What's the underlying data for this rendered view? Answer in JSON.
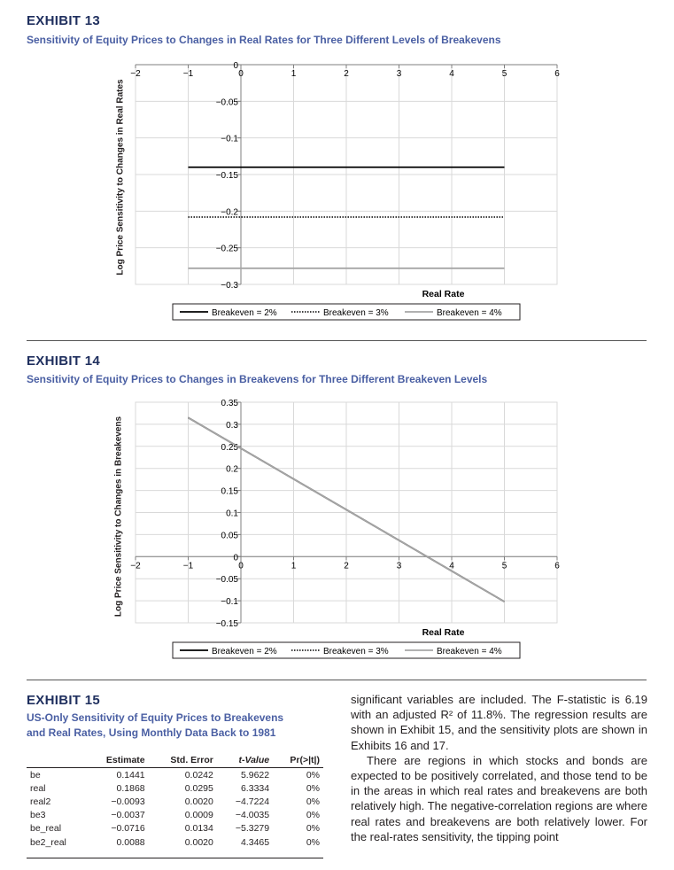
{
  "exhibit13": {
    "label": "EXHIBIT 13",
    "subtitle": "Sensitivity of Equity Prices to Changes in Real Rates for Three Different Levels of Breakevens",
    "ylabel": "Log Price Sensitivity to Changes in Real Rates",
    "xlabel": "Real Rate",
    "legend": [
      "Breakeven = 2%",
      "Breakeven = 3%",
      "Breakeven = 4%"
    ]
  },
  "exhibit14": {
    "label": "EXHIBIT 14",
    "subtitle": "Sensitivity of Equity Prices to Changes in Breakevens for Three Different Breakeven Levels",
    "ylabel": "Log Price Sensitivity to Changes in Breakevens",
    "xlabel": "Real Rate",
    "legend": [
      "Breakeven = 2%",
      "Breakeven = 3%",
      "Breakeven = 4%"
    ]
  },
  "exhibit15": {
    "label": "EXHIBIT 15",
    "subtitle_line1": "US-Only Sensitivity of Equity Prices to Breakevens",
    "subtitle_line2": "and Real Rates, Using Monthly Data Back to 1981",
    "columns": [
      "",
      "Estimate",
      "Std. Error",
      "t-Value",
      "Pr(>|t|)"
    ],
    "rows": [
      [
        "be",
        "0.1441",
        "0.0242",
        "5.9622",
        "0%"
      ],
      [
        "real",
        "0.1868",
        "0.0295",
        "6.3334",
        "0%"
      ],
      [
        "real2",
        "−0.0093",
        "0.0020",
        "−4.7224",
        "0%"
      ],
      [
        "be3",
        "−0.0037",
        "0.0009",
        "−4.0035",
        "0%"
      ],
      [
        "be_real",
        "−0.0716",
        "0.0134",
        "−5.3279",
        "0%"
      ],
      [
        "be2_real",
        "0.0088",
        "0.0020",
        "4.3465",
        "0%"
      ]
    ]
  },
  "body_text": {
    "p1": "significant variables are included. The F-statistic is 6.19 with an adjusted R² of 11.8%. The regression results are shown in Exhibit 15, and the sensitivity plots are shown in Exhibits 16 and 17.",
    "p2": "There are regions in which stocks and bonds are expected to be positively correlated, and those tend to be in the areas in which real rates and breakevens are both relatively high. The negative-correlation regions are where real rates and breakevens are both relatively lower. For the real-rates sensitivity, the tipping point"
  },
  "chart_data": [
    {
      "type": "line",
      "title": "Sensitivity of Equity Prices to Changes in Real Rates for Three Different Levels of Breakevens",
      "xlabel": "Real Rate",
      "ylabel": "Log Price Sensitivity to Changes in Real Rates",
      "xlim": [
        -2,
        6
      ],
      "ylim": [
        -0.3,
        0
      ],
      "xticks": [
        "−2",
        "−1",
        "0",
        "1",
        "2",
        "3",
        "4",
        "5",
        "6"
      ],
      "yticks": [
        "0",
        "−0.05",
        "−0.1",
        "−0.15",
        "−0.2",
        "−0.25",
        "−0.3"
      ],
      "grid": true,
      "legend_position": "bottom",
      "series": [
        {
          "name": "Breakeven = 2%",
          "style": "solid",
          "color": "#000000",
          "x": [
            -1,
            5
          ],
          "y": [
            -0.14,
            -0.14
          ]
        },
        {
          "name": "Breakeven = 3%",
          "style": "dotted",
          "color": "#000000",
          "x": [
            -1,
            5
          ],
          "y": [
            -0.208,
            -0.208
          ]
        },
        {
          "name": "Breakeven = 4%",
          "style": "solid",
          "color": "#a6a6a6",
          "x": [
            -1,
            5
          ],
          "y": [
            -0.278,
            -0.278
          ]
        }
      ]
    },
    {
      "type": "line",
      "title": "Sensitivity of Equity Prices to Changes in Breakevens for Three Different Breakeven Levels",
      "xlabel": "Real Rate",
      "ylabel": "Log Price Sensitivity to Changes in Breakevens",
      "xlim": [
        -2,
        6
      ],
      "ylim": [
        -0.15,
        0.35
      ],
      "xticks": [
        "−2",
        "−1",
        "0",
        "1",
        "2",
        "3",
        "4",
        "5",
        "6"
      ],
      "yticks": [
        "0.35",
        "0.3",
        "0.25",
        "0.2",
        "0.15",
        "0.1",
        "0.05",
        "0",
        "−0.05",
        "−0.1",
        "−0.15"
      ],
      "grid": true,
      "legend_position": "bottom",
      "series": [
        {
          "name": "Breakeven = 2%",
          "style": "solid",
          "color": "#000000",
          "x": [
            -1,
            5
          ],
          "y": [
            0.315,
            -0.102
          ]
        },
        {
          "name": "Breakeven = 3%",
          "style": "dotted",
          "color": "#000000",
          "x": [
            -1,
            5
          ],
          "y": [
            0.315,
            -0.102
          ]
        },
        {
          "name": "Breakeven = 4%",
          "style": "solid",
          "color": "#a6a6a6",
          "x": [
            -1,
            5
          ],
          "y": [
            0.315,
            -0.102
          ]
        }
      ]
    }
  ]
}
